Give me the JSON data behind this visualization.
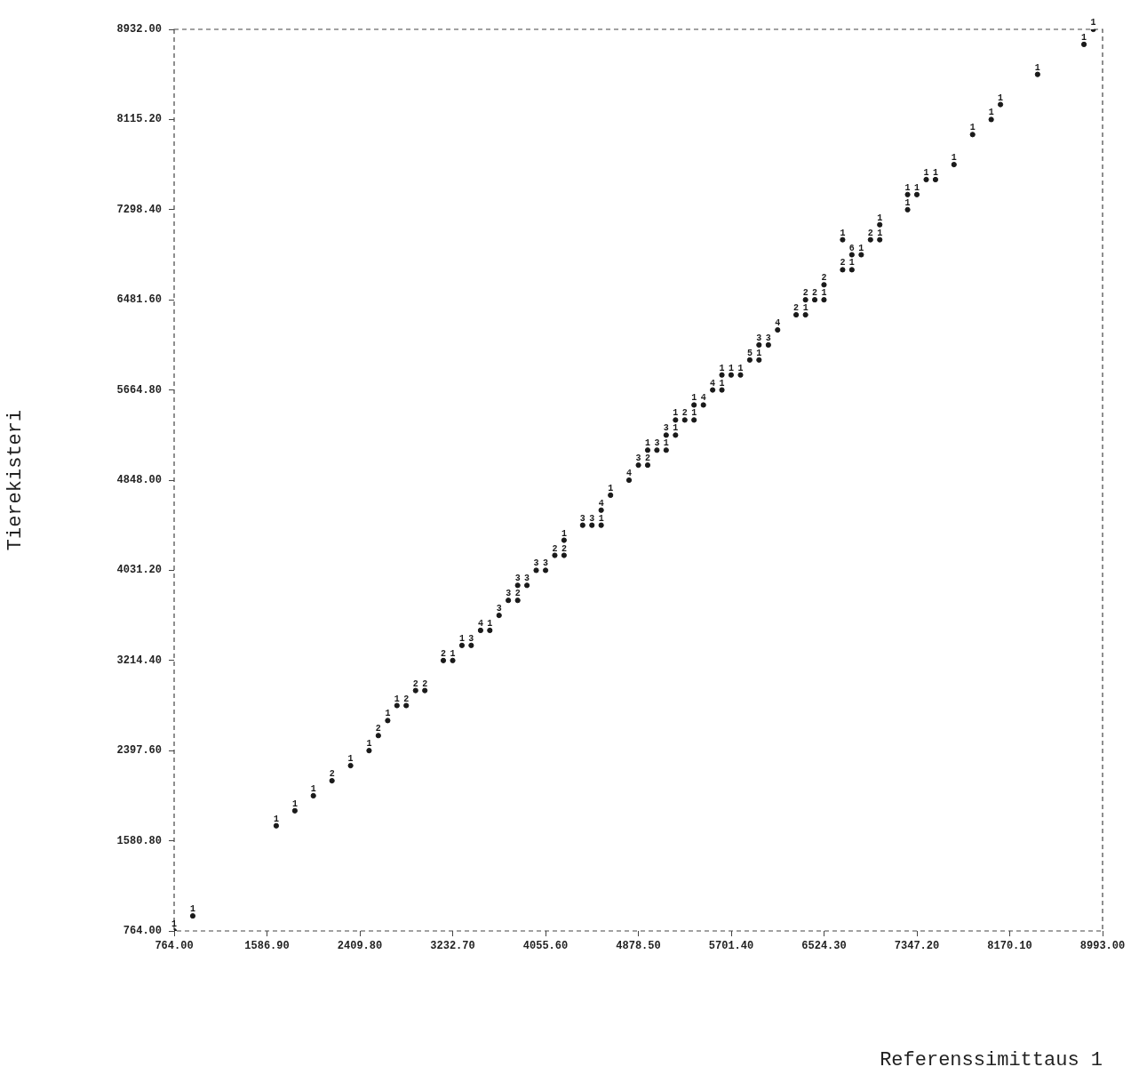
{
  "chart_data": {
    "type": "scatter",
    "xlabel": "Referenssimittaus 1",
    "ylabel": "Tierekisteri",
    "xlim": [
      764,
      8993
    ],
    "ylim": [
      764,
      8932
    ],
    "xticks": [
      {
        "value": 764,
        "label": "764.00"
      },
      {
        "value": 1586.9,
        "label": "1586.90"
      },
      {
        "value": 2409.8,
        "label": "2409.80"
      },
      {
        "value": 3232.7,
        "label": "3232.70"
      },
      {
        "value": 4055.6,
        "label": "4055.60"
      },
      {
        "value": 4878.5,
        "label": "4878.50"
      },
      {
        "value": 5701.4,
        "label": "5701.40"
      },
      {
        "value": 6524.3,
        "label": "6524.30"
      },
      {
        "value": 7347.2,
        "label": "7347.20"
      },
      {
        "value": 8170.1,
        "label": "8170.10"
      },
      {
        "value": 8993,
        "label": "8993.00"
      }
    ],
    "yticks": [
      {
        "value": 764,
        "label": "764.00"
      },
      {
        "value": 1580.8,
        "label": "1580.80"
      },
      {
        "value": 2397.6,
        "label": "2397.60"
      },
      {
        "value": 3214.4,
        "label": "3214.40"
      },
      {
        "value": 4031.2,
        "label": "4031.20"
      },
      {
        "value": 4848,
        "label": "4848.00"
      },
      {
        "value": 5664.8,
        "label": "5664.80"
      },
      {
        "value": 6481.6,
        "label": "6481.60"
      },
      {
        "value": 7298.4,
        "label": "7298.40"
      },
      {
        "value": 8115.2,
        "label": "8115.20"
      },
      {
        "value": 8932,
        "label": "8932.00"
      }
    ],
    "grid": false,
    "marker": "circle",
    "x": [
      764,
      929,
      1669,
      1834,
      1998,
      2163,
      2328,
      2492,
      2574,
      2657,
      2739,
      2821,
      2904,
      2986,
      3150,
      3233,
      3315,
      3397,
      3480,
      3562,
      3644,
      3726,
      3809,
      3809,
      3891,
      3973,
      4056,
      4138,
      4220,
      4220,
      4385,
      4467,
      4549,
      4549,
      4632,
      4796,
      4879,
      4961,
      4961,
      5043,
      5125,
      5125,
      5208,
      5208,
      5290,
      5372,
      5372,
      5455,
      5537,
      5619,
      5619,
      5701,
      5784,
      5866,
      5948,
      5948,
      6031,
      6113,
      6277,
      6360,
      6360,
      6442,
      6524,
      6524,
      6689,
      6771,
      6771,
      6854,
      6689,
      6936,
      7018,
      7018,
      7265,
      7265,
      7347,
      7430,
      7512,
      7676,
      7841,
      8006,
      8088,
      8417,
      8828,
      8911
    ],
    "values": [
      764,
      900,
      1717,
      1853,
      1989,
      2125,
      2262,
      2398,
      2534,
      2670,
      2806,
      2806,
      2942,
      2942,
      3214,
      3214,
      3351,
      3351,
      3487,
      3487,
      3623,
      3759,
      3759,
      3895,
      3895,
      4031,
      4031,
      4167,
      4167,
      4304,
      4440,
      4440,
      4440,
      4576,
      4712,
      4848,
      4984,
      4984,
      5120,
      5120,
      5120,
      5256,
      5256,
      5393,
      5393,
      5393,
      5529,
      5529,
      5665,
      5665,
      5801,
      5801,
      5801,
      5937,
      5937,
      6073,
      6073,
      6209,
      6346,
      6346,
      6482,
      6482,
      6482,
      6618,
      6754,
      6754,
      6890,
      6890,
      7026,
      7026,
      7026,
      7162,
      7298,
      7435,
      7435,
      7571,
      7571,
      7707,
      7979,
      8115,
      8251,
      8524,
      8796,
      8932
    ],
    "color": "#1a1a1a",
    "annotations": [
      {
        "text": "1",
        "x": 764,
        "y": 764
      },
      {
        "text": "1",
        "x": 929,
        "y": 900
      },
      {
        "text": "1",
        "x": 1669,
        "y": 1717
      },
      {
        "text": "1",
        "x": 1834,
        "y": 1853
      },
      {
        "text": "1",
        "x": 1998,
        "y": 1989
      },
      {
        "text": "2",
        "x": 2163,
        "y": 2125
      },
      {
        "text": "1",
        "x": 2328,
        "y": 2262
      },
      {
        "text": "1",
        "x": 2492,
        "y": 2398
      },
      {
        "text": "2",
        "x": 2574,
        "y": 2534
      },
      {
        "text": "1",
        "x": 2657,
        "y": 2670
      },
      {
        "text": "1",
        "x": 2739,
        "y": 2806
      },
      {
        "text": "2",
        "x": 2821,
        "y": 2806
      },
      {
        "text": "2",
        "x": 2904,
        "y": 2942
      },
      {
        "text": "2",
        "x": 2986,
        "y": 2942
      },
      {
        "text": "2",
        "x": 3150,
        "y": 3214
      },
      {
        "text": "1",
        "x": 3233,
        "y": 3214
      },
      {
        "text": "1",
        "x": 3315,
        "y": 3351
      },
      {
        "text": "3",
        "x": 3397,
        "y": 3351
      },
      {
        "text": "4",
        "x": 3480,
        "y": 3487
      },
      {
        "text": "1",
        "x": 3562,
        "y": 3487
      },
      {
        "text": "3",
        "x": 3644,
        "y": 3623
      },
      {
        "text": "3",
        "x": 3726,
        "y": 3759
      },
      {
        "text": "2",
        "x": 3809,
        "y": 3759
      },
      {
        "text": "3",
        "x": 3809,
        "y": 3895
      },
      {
        "text": "3",
        "x": 3891,
        "y": 3895
      },
      {
        "text": "3",
        "x": 3973,
        "y": 4031
      },
      {
        "text": "3",
        "x": 4056,
        "y": 4031
      },
      {
        "text": "2",
        "x": 4138,
        "y": 4167
      },
      {
        "text": "2",
        "x": 4220,
        "y": 4167
      },
      {
        "text": "1",
        "x": 4220,
        "y": 4304
      },
      {
        "text": "3",
        "x": 4385,
        "y": 4440
      },
      {
        "text": "3",
        "x": 4467,
        "y": 4440
      },
      {
        "text": "1",
        "x": 4549,
        "y": 4440
      },
      {
        "text": "4",
        "x": 4549,
        "y": 4576
      },
      {
        "text": "1",
        "x": 4632,
        "y": 4712
      },
      {
        "text": "4",
        "x": 4796,
        "y": 4848
      },
      {
        "text": "3",
        "x": 4879,
        "y": 4984
      },
      {
        "text": "2",
        "x": 4961,
        "y": 4984
      },
      {
        "text": "1",
        "x": 4961,
        "y": 5120
      },
      {
        "text": "3",
        "x": 5043,
        "y": 5120
      },
      {
        "text": "1",
        "x": 5125,
        "y": 5120
      },
      {
        "text": "3",
        "x": 5125,
        "y": 5256
      },
      {
        "text": "1",
        "x": 5208,
        "y": 5256
      },
      {
        "text": "1",
        "x": 5208,
        "y": 5393
      },
      {
        "text": "2",
        "x": 5290,
        "y": 5393
      },
      {
        "text": "1",
        "x": 5372,
        "y": 5393
      },
      {
        "text": "1",
        "x": 5372,
        "y": 5529
      },
      {
        "text": "4",
        "x": 5455,
        "y": 5529
      },
      {
        "text": "4",
        "x": 5537,
        "y": 5665
      },
      {
        "text": "1",
        "x": 5619,
        "y": 5665
      },
      {
        "text": "1",
        "x": 5619,
        "y": 5801
      },
      {
        "text": "1",
        "x": 5701,
        "y": 5801
      },
      {
        "text": "1",
        "x": 5784,
        "y": 5801
      },
      {
        "text": "5",
        "x": 5866,
        "y": 5937
      },
      {
        "text": "1",
        "x": 5948,
        "y": 5937
      },
      {
        "text": "3",
        "x": 5948,
        "y": 6073
      },
      {
        "text": "3",
        "x": 6031,
        "y": 6073
      },
      {
        "text": "4",
        "x": 6113,
        "y": 6209
      },
      {
        "text": "2",
        "x": 6277,
        "y": 6346
      },
      {
        "text": "1",
        "x": 6360,
        "y": 6346
      },
      {
        "text": "2",
        "x": 6360,
        "y": 6482
      },
      {
        "text": "2",
        "x": 6442,
        "y": 6482
      },
      {
        "text": "1",
        "x": 6524,
        "y": 6482
      },
      {
        "text": "2",
        "x": 6524,
        "y": 6618
      },
      {
        "text": "2",
        "x": 6689,
        "y": 6754
      },
      {
        "text": "1",
        "x": 6771,
        "y": 6754
      },
      {
        "text": "6",
        "x": 6771,
        "y": 6890
      },
      {
        "text": "1",
        "x": 6854,
        "y": 6890
      },
      {
        "text": "1",
        "x": 6689,
        "y": 7026
      },
      {
        "text": "2",
        "x": 6936,
        "y": 7026
      },
      {
        "text": "1",
        "x": 7018,
        "y": 7026
      },
      {
        "text": "1",
        "x": 7018,
        "y": 7162
      },
      {
        "text": "1",
        "x": 7265,
        "y": 7298
      },
      {
        "text": "1",
        "x": 7265,
        "y": 7435
      },
      {
        "text": "1",
        "x": 7347,
        "y": 7435
      },
      {
        "text": "1",
        "x": 7430,
        "y": 7571
      },
      {
        "text": "1",
        "x": 7512,
        "y": 7571
      },
      {
        "text": "1",
        "x": 7676,
        "y": 7707
      },
      {
        "text": "1",
        "x": 7841,
        "y": 7979
      },
      {
        "text": "1",
        "x": 8006,
        "y": 8115
      },
      {
        "text": "1",
        "x": 8088,
        "y": 8251
      },
      {
        "text": "1",
        "x": 8417,
        "y": 8524
      },
      {
        "text": "1",
        "x": 8828,
        "y": 8796
      },
      {
        "text": "1",
        "x": 8911,
        "y": 8932
      }
    ]
  }
}
